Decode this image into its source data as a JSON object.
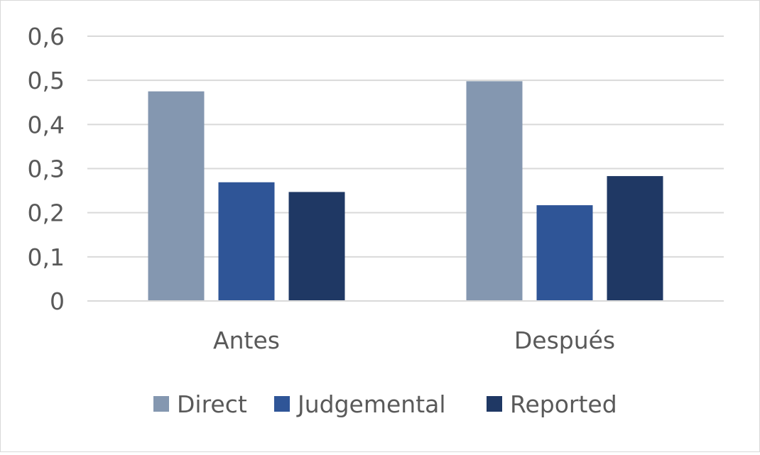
{
  "chart_data": {
    "type": "bar",
    "categories": [
      "Antes",
      "Después"
    ],
    "series": [
      {
        "name": "Direct",
        "color": "#8497b0",
        "values": [
          0.475,
          0.498
        ]
      },
      {
        "name": "Judgemental",
        "color": "#2f5597",
        "values": [
          0.269,
          0.217
        ]
      },
      {
        "name": "Reported",
        "color": "#1f3864",
        "values": [
          0.247,
          0.283
        ]
      }
    ],
    "title": "",
    "xlabel": "",
    "ylabel": "",
    "ylim": [
      0,
      0.6
    ],
    "yticks": [
      0,
      0.1,
      0.2,
      0.3,
      0.4,
      0.5,
      0.6
    ],
    "ytick_labels": [
      "0",
      "0,1",
      "0,2",
      "0,3",
      "0,4",
      "0,5",
      "0,6"
    ],
    "grid": true,
    "gridline_color": "#d9d9d9",
    "legend_position": "bottom"
  }
}
